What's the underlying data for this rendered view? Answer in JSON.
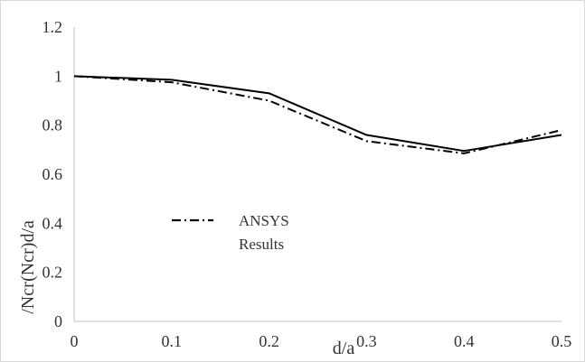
{
  "chart_data": {
    "type": "line",
    "x": [
      0,
      0.1,
      0.2,
      0.3,
      0.4,
      0.5
    ],
    "x_tick_labels": [
      "0",
      "0.1",
      "0.2",
      "0.3",
      "0.4",
      "0.5"
    ],
    "y_tick_labels": [
      "0",
      "0.2",
      "0.4",
      "0.6",
      "0.8",
      "1",
      "1.2"
    ],
    "xlabel": "d/a",
    "ylabel": "(Ncr)d/a",
    "ylabel_overlap": "/Ncr",
    "xlim": [
      0,
      0.5
    ],
    "ylim": [
      0,
      1.2
    ],
    "grid": false,
    "legend": {
      "placement": "center-left",
      "entry_line1": "ANSYS",
      "entry_line2": "Results"
    },
    "series": [
      {
        "name": "",
        "style": "solid",
        "color": "#000000",
        "values": [
          1.0,
          0.985,
          0.93,
          0.76,
          0.695,
          0.76
        ]
      },
      {
        "name": "ANSYS Results",
        "style": "dashdot",
        "color": "#000000",
        "values": [
          1.0,
          0.975,
          0.9,
          0.735,
          0.685,
          0.78
        ]
      }
    ]
  }
}
